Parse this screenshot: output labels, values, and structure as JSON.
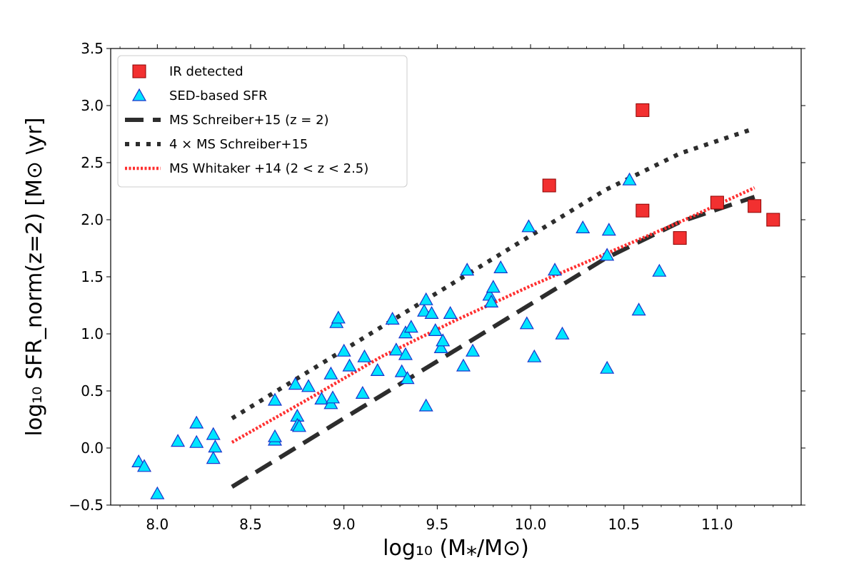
{
  "chart_data": {
    "type": "scatter",
    "xlabel": "log₁₀ (M⁎/M⊙)",
    "ylabel": "log₁₀ SFR_norm(z=2) [M⊙ \\yr]",
    "xlim": [
      7.75,
      11.45
    ],
    "ylim": [
      -0.5,
      3.5
    ],
    "x_ticks": [
      8.0,
      8.5,
      9.0,
      9.5,
      10.0,
      10.5,
      11.0
    ],
    "x_tick_labels": [
      "8.0",
      "8.5",
      "9.0",
      "9.5",
      "10.0",
      "10.5",
      "11.0"
    ],
    "y_ticks": [
      -0.5,
      0.0,
      0.5,
      1.0,
      1.5,
      2.0,
      2.5,
      3.0,
      3.5
    ],
    "y_tick_labels": [
      "−0.5",
      "0.0",
      "0.5",
      "1.0",
      "1.5",
      "2.0",
      "2.5",
      "3.0",
      "3.5"
    ],
    "legend_position": "top-left",
    "series": [
      {
        "name": "IR detected",
        "kind": "scatter",
        "marker": "square",
        "color": "#f23030",
        "edge": "#8b0000",
        "x": [
          10.6,
          10.1,
          10.6,
          11.0,
          11.2,
          10.8,
          11.3
        ],
        "y": [
          2.96,
          2.3,
          2.08,
          2.15,
          2.12,
          1.84,
          2.0
        ]
      },
      {
        "name": "SED-based SFR",
        "kind": "scatter",
        "marker": "triangle",
        "color": "#00e5ff",
        "edge": "#1a33cc",
        "x": [
          7.9,
          7.93,
          8.0,
          8.11,
          8.21,
          8.21,
          8.3,
          8.31,
          8.3,
          8.63,
          8.63,
          8.63,
          8.74,
          8.75,
          8.75,
          8.76,
          8.81,
          8.88,
          8.93,
          8.93,
          8.94,
          8.96,
          8.97,
          9.0,
          9.03,
          9.1,
          9.11,
          9.18,
          9.26,
          9.28,
          9.31,
          9.33,
          9.33,
          9.34,
          9.36,
          9.43,
          9.44,
          9.44,
          9.47,
          9.49,
          9.52,
          9.53,
          9.57,
          9.64,
          9.66,
          9.69,
          9.78,
          9.79,
          9.8,
          9.84,
          9.98,
          9.99,
          10.02,
          10.13,
          10.17,
          10.28,
          10.41,
          10.41,
          10.42,
          10.53,
          10.58,
          10.69
        ],
        "y": [
          -0.12,
          -0.16,
          -0.4,
          0.06,
          0.22,
          0.05,
          0.12,
          0.01,
          -0.09,
          0.42,
          0.07,
          0.1,
          0.56,
          0.28,
          0.2,
          0.19,
          0.54,
          0.43,
          0.65,
          0.39,
          0.44,
          1.1,
          1.14,
          0.85,
          0.72,
          0.48,
          0.8,
          0.68,
          1.13,
          0.86,
          0.67,
          1.01,
          0.82,
          0.61,
          1.06,
          1.2,
          1.3,
          0.37,
          1.18,
          1.03,
          0.88,
          0.94,
          1.18,
          0.72,
          1.56,
          0.85,
          1.34,
          1.28,
          1.41,
          1.58,
          1.09,
          1.94,
          0.8,
          1.56,
          1.0,
          1.93,
          1.69,
          0.7,
          1.91,
          2.35,
          1.21,
          1.55
        ]
      },
      {
        "name": "MS Schreiber+15 (z = 2)",
        "kind": "line",
        "style": "dashed",
        "color": "#2d2d2d",
        "x": [
          8.4,
          8.8,
          9.2,
          9.6,
          10.0,
          10.4,
          10.8,
          11.2
        ],
        "y": [
          -0.34,
          0.06,
          0.46,
          0.86,
          1.26,
          1.66,
          1.98,
          2.2
        ]
      },
      {
        "name": "4 × MS Schreiber+15",
        "kind": "line",
        "style": "dotted",
        "color": "#2d2d2d",
        "x": [
          8.4,
          8.8,
          9.2,
          9.6,
          10.0,
          10.4,
          10.8,
          11.2
        ],
        "y": [
          0.26,
          0.66,
          1.06,
          1.46,
          1.86,
          2.26,
          2.58,
          2.8
        ]
      },
      {
        "name": "MS Whitaker +14 (2 < z < 2.5)",
        "kind": "line",
        "style": "dotted-fine",
        "color": "#ff3030",
        "x": [
          8.4,
          8.8,
          9.2,
          9.6,
          10.0,
          10.4,
          10.8,
          11.2
        ],
        "y": [
          0.05,
          0.42,
          0.8,
          1.12,
          1.42,
          1.7,
          1.98,
          2.28
        ]
      }
    ],
    "legend": [
      {
        "label": "IR detected",
        "series": 0
      },
      {
        "label": "SED-based SFR",
        "series": 1
      },
      {
        "label": "MS Schreiber+15 (z = 2)",
        "series": 2
      },
      {
        "label": "4 × MS Schreiber+15",
        "series": 3
      },
      {
        "label": "MS Whitaker +14 (2 < z < 2.5)",
        "series": 4
      }
    ]
  }
}
